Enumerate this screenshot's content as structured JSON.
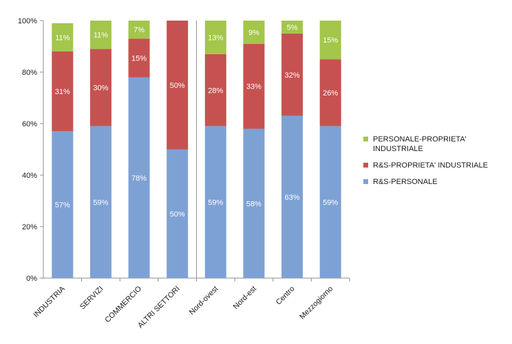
{
  "chart_data": {
    "type": "bar",
    "stacked": true,
    "categories": [
      "INDUSTRIA",
      "SERVIZI",
      "COMMERCIO",
      "ALTRI SETTORI",
      "Nord-ovest",
      "Nord-est",
      "Centro",
      "Mezzogiorno"
    ],
    "series": [
      {
        "name": "R&S-PERSONALE",
        "color": "#7ea1d4",
        "values": [
          57,
          59,
          78,
          50,
          59,
          58,
          63,
          59
        ],
        "labels": [
          "57%",
          "59%",
          "78%",
          "50%",
          "59%",
          "58%",
          "63%",
          "59%"
        ]
      },
      {
        "name": "R&S-PROPRIETA' INDUSTRIALE",
        "color": "#c55250",
        "values": [
          31,
          30,
          15,
          50,
          28,
          33,
          32,
          26
        ],
        "labels": [
          "31%",
          "30%",
          "15%",
          "50%",
          "28%",
          "33%",
          "32%",
          "26%"
        ]
      },
      {
        "name": "PERSONALE-PROPRIETA' INDUSTRIALE",
        "color": "#a3c64b",
        "values": [
          11,
          11,
          7,
          0,
          13,
          9,
          5,
          15
        ],
        "labels": [
          "11%",
          "11%",
          "7%",
          "",
          "13%",
          "9%",
          "5%",
          "15%"
        ]
      }
    ],
    "legend_order": [
      2,
      1,
      0
    ],
    "legend_position": "right",
    "yticks": [
      "0%",
      "20%",
      "40%",
      "60%",
      "80%",
      "100%"
    ],
    "ylim": [
      0,
      100
    ],
    "group_divider_after": 4,
    "title": "",
    "xlabel": "",
    "ylabel": ""
  }
}
